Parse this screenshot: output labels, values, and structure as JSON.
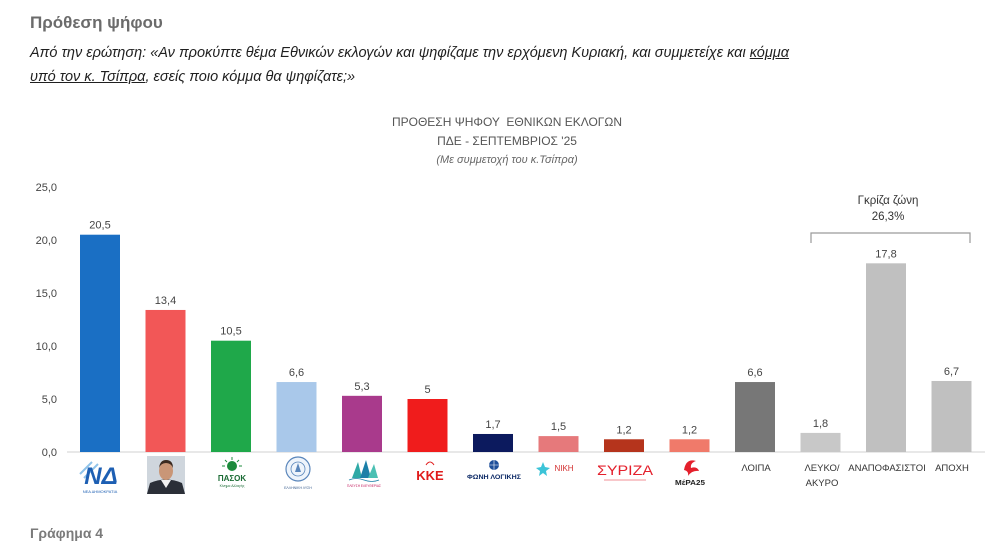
{
  "header": {
    "title": "Πρόθεση ψήφου",
    "question_prefix": "Από την ερώτηση: «Αν προκύπτε θέμα Εθνικών εκλογών και ψηφίζαμε την ερχόμενη Κυριακή, και συμμετείχε και ",
    "question_underlined_1": "κόμμα",
    "question_underlined_2": "υπό τον κ. Τσίπρα",
    "question_suffix": ", εσείς ποιο κόμμα θα ψηφίζατε;»"
  },
  "chart_data": {
    "type": "bar",
    "title": "ΠΡΟΘΕΣΗ ΨΗΦΟΥ  ΕΘΝΙΚΩΝ ΕΚΛΟΓΩΝ",
    "title_line2": "ΠΔΕ - ΣΕΠΤΕΜΒΡΙΟΣ '25",
    "subtitle": "(Με συμμετοχή του κ.Τσίπρα)",
    "xlabel": "",
    "ylabel": "",
    "ylim": [
      0,
      25
    ],
    "yticks": [
      0,
      5,
      10,
      15,
      20,
      25
    ],
    "ytick_labels": [
      "0,0",
      "5,0",
      "10,0",
      "15,0",
      "20,0",
      "25,0"
    ],
    "grid": false,
    "categories": [
      "ΝΔ",
      "",
      "ΠΑΣΟΚ",
      "ΕΛΛΗΝΙΚΗ ΛΥΣΗ",
      "ΠΛΕΥΣΗ ΕΛΕΥΘΕΡΙΑΣ",
      "ΚΚΕ",
      "ΦΩΝΗ ΛΟΓΙΚΗΣ",
      "ΝΙΚΗ",
      "ΣΥΡΙΖΑ",
      "ΜέΡΑ25",
      "ΛΟΙΠΑ",
      "ΛΕΥΚΟ/ ΑΚΥΡΟ",
      "ΑΝΑΠΟΦΑΣΙΣΤΟΙ",
      "ΑΠΟΧΗ"
    ],
    "values": [
      20.5,
      13.4,
      10.5,
      6.6,
      5.3,
      5,
      1.7,
      1.5,
      1.2,
      1.2,
      6.6,
      1.8,
      17.8,
      6.7
    ],
    "value_labels": [
      "20,5",
      "13,4",
      "10,5",
      "6,6",
      "5,3",
      "5",
      "1,7",
      "1,5",
      "1,2",
      "1,2",
      "6,6",
      "1,8",
      "17,8",
      "6,7"
    ],
    "colors": [
      "#1a6fc4",
      "#f25757",
      "#1fa84a",
      "#a9c8ea",
      "#a93a8c",
      "#f01c1c",
      "#0c1a5e",
      "#e6797b",
      "#b5341c",
      "#f07a6a",
      "#777777",
      "#c8c8c8",
      "#c0c0c0",
      "#c0c0c0"
    ],
    "logo_subtext": {
      "nd": "ΝΕΑ ΔΗΜΟΚΡΑΤΙΑ",
      "pasok": "Κίνημα Αλλαγής"
    },
    "annotation": {
      "label": "Γκρίζα ζώνη",
      "value": "26,3%"
    }
  },
  "footer": {
    "caption": "Γράφημα 4"
  }
}
